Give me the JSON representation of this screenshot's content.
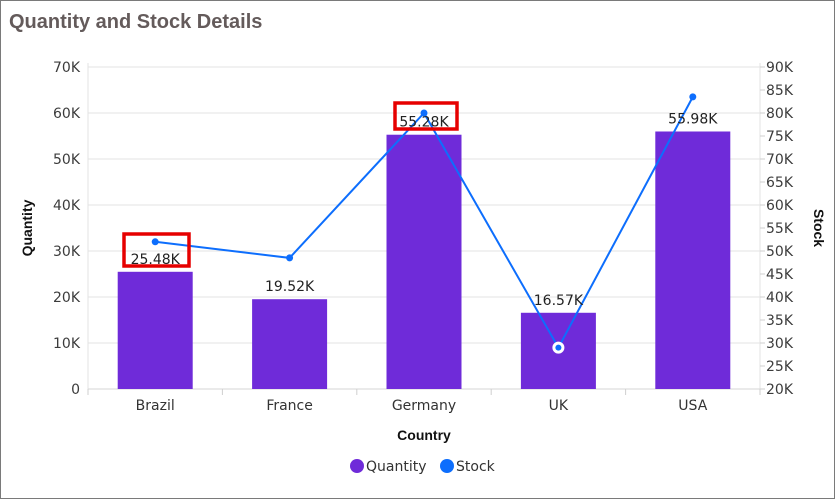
{
  "title": "Quantity and Stock Details",
  "colors": {
    "quantity": "#6f2bd9",
    "stock": "#0d6efd",
    "grid": "#e3e3e3",
    "highlight": "#e60000"
  },
  "legend": [
    {
      "label": "Quantity",
      "color": "#6f2bd9"
    },
    {
      "label": "Stock",
      "color": "#0d6efd"
    }
  ],
  "chart_data": {
    "type": "bar",
    "title": "Quantity and Stock Details",
    "xlabel": "Country",
    "ylabel": "Quantity",
    "y2label": "Stock",
    "categories": [
      "Brazil",
      "France",
      "Germany",
      "UK",
      "USA"
    ],
    "ylim": [
      0,
      70000
    ],
    "y2lim": [
      20000,
      90000
    ],
    "yticks": [
      "0",
      "10K",
      "20K",
      "30K",
      "40K",
      "50K",
      "60K",
      "70K"
    ],
    "y2ticks": [
      "20K",
      "25K",
      "30K",
      "35K",
      "40K",
      "45K",
      "50K",
      "55K",
      "60K",
      "65K",
      "70K",
      "75K",
      "80K",
      "85K",
      "90K"
    ],
    "grid": true,
    "legend_position": "bottom",
    "series": [
      {
        "name": "Quantity",
        "type": "bar",
        "axis": "left",
        "values": [
          25480,
          19520,
          55280,
          16570,
          55980
        ],
        "labels": [
          "25.48K",
          "19.52K",
          "55.28K",
          "16.57K",
          "55.98K"
        ]
      },
      {
        "name": "Stock",
        "type": "line",
        "axis": "right",
        "values": [
          52000,
          48500,
          80000,
          29000,
          83500
        ]
      }
    ],
    "annotations": [
      {
        "type": "highlight-box",
        "target": "Brazil label 25.48K"
      },
      {
        "type": "highlight-box",
        "target": "Germany label 55.28K"
      },
      {
        "type": "selected-point",
        "target": "UK Stock"
      }
    ]
  }
}
